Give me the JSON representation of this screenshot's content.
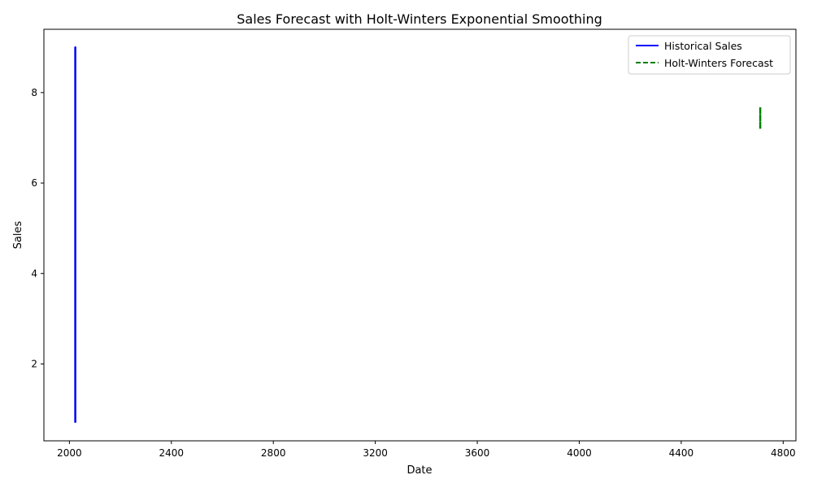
{
  "chart_data": {
    "type": "line",
    "title": "Sales Forecast with Holt-Winters Exponential Smoothing",
    "xlabel": "Date",
    "ylabel": "Sales",
    "xlim": [
      1900,
      4850
    ],
    "ylim": [
      0.3,
      9.4
    ],
    "xticks": [
      2000,
      2400,
      2800,
      3200,
      3600,
      4000,
      4400,
      4800
    ],
    "yticks": [
      2,
      4,
      6,
      8
    ],
    "grid": false,
    "legend_position": "top-right",
    "series": [
      {
        "name": "Historical Sales",
        "color": "#0000ff",
        "style": "solid",
        "x": [
          2023,
          2023,
          2023,
          2023,
          2023,
          2023,
          2023,
          2023
        ],
        "y": [
          0.7,
          9.0,
          1.5,
          8.2,
          3.0,
          7.5,
          2.2,
          6.0
        ]
      },
      {
        "name": "Holt-Winters Forecast",
        "color": "#008000",
        "style": "dashed",
        "x": [
          4710,
          4710,
          4710,
          4710,
          4710,
          4710
        ],
        "y": [
          7.2,
          7.68,
          7.3,
          7.6,
          7.25,
          7.45
        ]
      }
    ]
  }
}
